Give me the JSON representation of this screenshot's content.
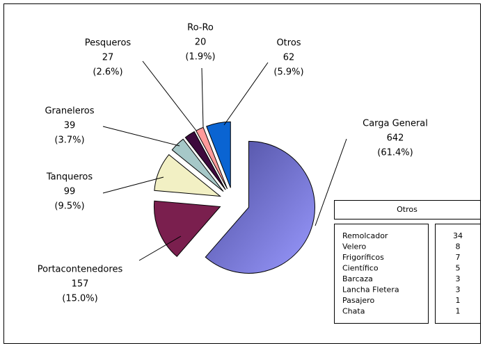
{
  "chart_data": {
    "type": "pie",
    "categories": [
      "Carga General",
      "Portacontenedores",
      "Tanqueros",
      "Graneleros",
      "Pesqueros",
      "Ro-Ro",
      "Otros"
    ],
    "values": [
      642,
      157,
      99,
      39,
      27,
      20,
      62
    ],
    "percent_labels": [
      "(61.4%)",
      "(15.0%)",
      "(9.5%)",
      "(3.7%)",
      "(2.6%)",
      "(1.9%)",
      "(5.9%)"
    ],
    "colors": [
      "#7b7be6",
      "#7a1f4e",
      "#f2f0c4",
      "#a6c8c8",
      "#3d0a3d",
      "#ff9a9a",
      "#0a64d2"
    ],
    "table": {
      "title": "Otros",
      "rows": [
        [
          "Remolcador",
          34
        ],
        [
          "Velero",
          8
        ],
        [
          "Frigoríficos",
          7
        ],
        [
          "Científico",
          5
        ],
        [
          "Barcaza",
          3
        ],
        [
          "Lancha Fletera",
          3
        ],
        [
          "Pasajero",
          1
        ],
        [
          "Chata",
          1
        ]
      ]
    }
  }
}
